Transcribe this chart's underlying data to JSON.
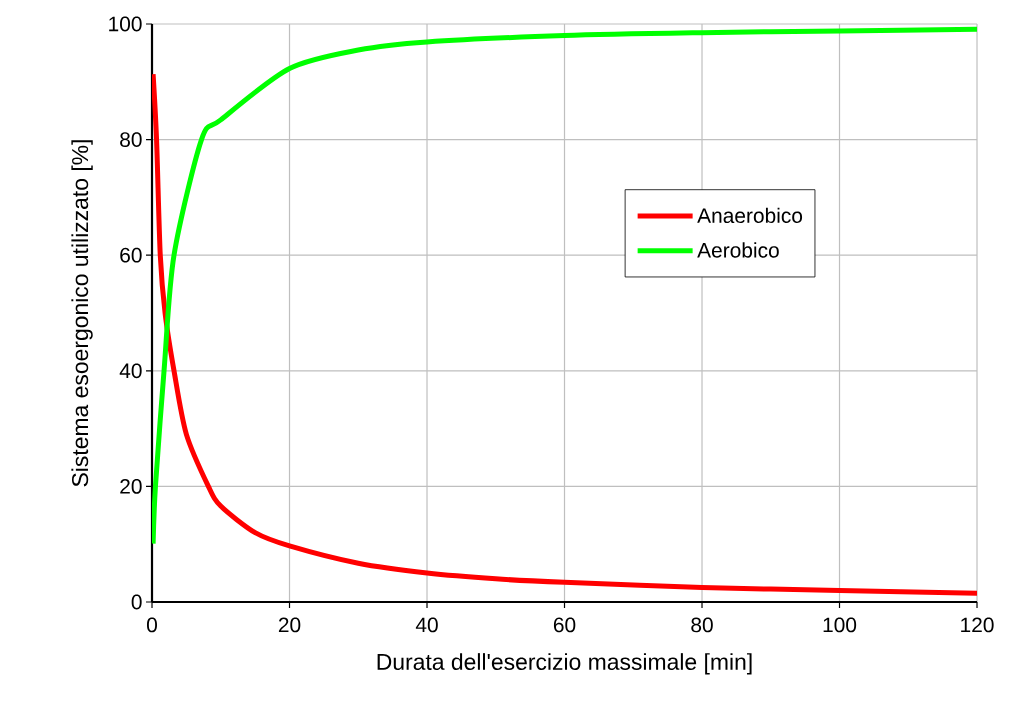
{
  "chart_data": {
    "type": "line",
    "xlabel": "Durata dell'esercizio massimale [min]",
    "ylabel": "Sistema esoergonico utilizzato [%]",
    "xlim": [
      0,
      120
    ],
    "ylim": [
      0,
      100
    ],
    "xticks": [
      0,
      20,
      40,
      60,
      80,
      100,
      120
    ],
    "yticks": [
      0,
      20,
      40,
      60,
      80,
      100
    ],
    "grid": true,
    "legend": "right",
    "marker": "none",
    "line_style": "solid",
    "series": [
      {
        "name": "Anaerobico",
        "color": "#ff0000",
        "x": [
          0.16,
          0.66,
          1.2,
          1.9,
          3.2,
          5,
          8.2,
          10,
          15,
          20,
          30,
          40,
          50,
          60,
          80,
          100,
          120
        ],
        "values": [
          91.3,
          80,
          60,
          50,
          40,
          29,
          20,
          16.6,
          12,
          9.7,
          6.7,
          5.0,
          4.0,
          3.4,
          2.5,
          2.0,
          1.5
        ]
      },
      {
        "name": "Aerobico",
        "color": "#00ff00",
        "x": [
          0.16,
          0.5,
          1.75,
          3.2,
          7.2,
          10,
          20,
          30,
          40,
          60,
          80,
          100,
          120
        ],
        "values": [
          10.1,
          20,
          40,
          60,
          80,
          83.4,
          92.3,
          95.5,
          96.9,
          98.0,
          98.5,
          98.8,
          99.1
        ]
      }
    ]
  }
}
